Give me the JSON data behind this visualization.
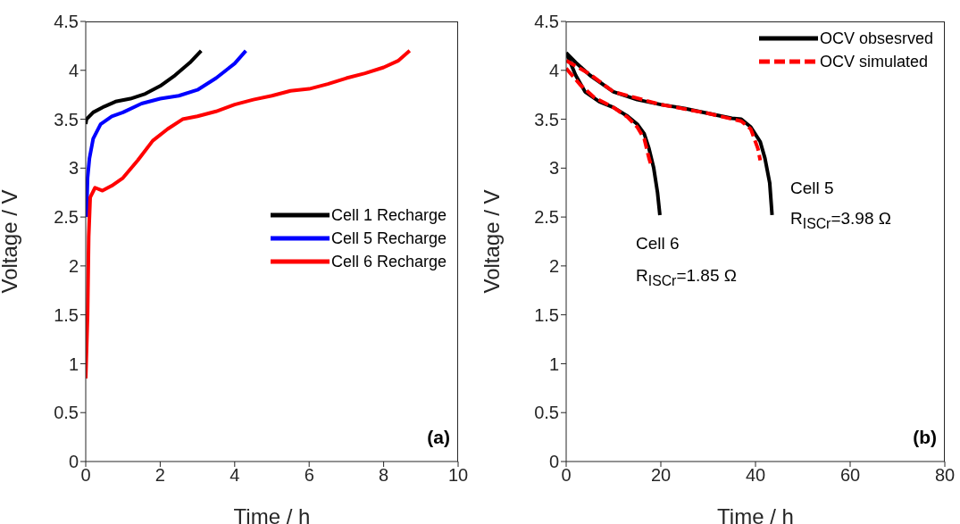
{
  "chart_data": [
    {
      "type": "line",
      "xlabel": "Time / h",
      "ylabel": "Voltage / V",
      "xlim": [
        0,
        10
      ],
      "ylim": [
        0,
        4.5
      ],
      "xticks": [
        0,
        2,
        4,
        6,
        8,
        10
      ],
      "yticks": [
        0,
        0.5,
        1,
        1.5,
        2,
        2.5,
        3,
        3.5,
        4,
        4.5
      ],
      "legend": "right",
      "annotations": [
        "(a)"
      ],
      "series": [
        {
          "name": "Cell 1 Recharge",
          "color": "#000000",
          "x": [
            0,
            0.02,
            0.2,
            0.5,
            0.8,
            1.2,
            1.6,
            2.0,
            2.4,
            2.8,
            3.1
          ],
          "values": [
            3.45,
            3.5,
            3.57,
            3.63,
            3.68,
            3.71,
            3.76,
            3.84,
            3.95,
            4.08,
            4.2
          ]
        },
        {
          "name": "Cell 5 Recharge",
          "color": "#0000ff",
          "x": [
            0.02,
            0.05,
            0.1,
            0.2,
            0.4,
            0.7,
            1.0,
            1.5,
            2.0,
            2.5,
            3.0,
            3.5,
            4.0,
            4.3
          ],
          "values": [
            2.5,
            2.9,
            3.1,
            3.3,
            3.45,
            3.53,
            3.57,
            3.66,
            3.71,
            3.74,
            3.8,
            3.92,
            4.07,
            4.2
          ]
        },
        {
          "name": "Cell 6 Recharge",
          "color": "#ff0000",
          "x": [
            0,
            0.05,
            0.08,
            0.12,
            0.25,
            0.45,
            0.7,
            1.0,
            1.4,
            1.8,
            2.2,
            2.6,
            3.0,
            3.5,
            4.0,
            4.5,
            5.0,
            5.5,
            6.0,
            6.5,
            7.0,
            7.5,
            8.0,
            8.4,
            8.7
          ],
          "values": [
            0.85,
            1.5,
            2.3,
            2.7,
            2.8,
            2.77,
            2.82,
            2.9,
            3.08,
            3.28,
            3.4,
            3.5,
            3.53,
            3.58,
            3.65,
            3.7,
            3.74,
            3.79,
            3.81,
            3.86,
            3.92,
            3.97,
            4.03,
            4.1,
            4.2
          ]
        }
      ]
    },
    {
      "type": "line",
      "xlabel": "Time / h",
      "ylabel": "Voltage / V",
      "xlim": [
        0,
        80
      ],
      "ylim": [
        0,
        4.5
      ],
      "xticks": [
        0,
        20,
        40,
        60,
        80
      ],
      "yticks": [
        0,
        0.5,
        1,
        1.5,
        2,
        2.5,
        3,
        3.5,
        4,
        4.5
      ],
      "legend": "top right",
      "annotations": [
        "(b)",
        "Cell 5",
        "R$_{ISCr}$=3.98 Ω",
        "Cell 6",
        "R$_{ISCr}$=1.85 Ω"
      ],
      "series": [
        {
          "name": "OCV obsesrved",
          "color": "#000000",
          "x": [
            0,
            2,
            5,
            10,
            15,
            20,
            25,
            30,
            35,
            37,
            39,
            41,
            42,
            43,
            43.5
          ],
          "values": [
            4.18,
            4.08,
            3.95,
            3.78,
            3.7,
            3.65,
            3.61,
            3.56,
            3.51,
            3.5,
            3.42,
            3.27,
            3.1,
            2.85,
            2.52
          ]
        },
        {
          "color": "#000000",
          "x": [
            0,
            2,
            4,
            7,
            10,
            13,
            15,
            16.5,
            17.5,
            18.5,
            19.3,
            19.8
          ],
          "values": [
            4.18,
            3.95,
            3.78,
            3.68,
            3.62,
            3.53,
            3.45,
            3.35,
            3.2,
            3.0,
            2.75,
            2.52
          ]
        },
        {
          "name": "OCV simulated",
          "color": "#ff0000",
          "line_style": "dashed",
          "x": [
            0,
            5,
            10,
            20,
            30,
            37,
            39,
            40.5,
            41
          ],
          "values": [
            4.1,
            3.96,
            3.78,
            3.65,
            3.56,
            3.48,
            3.4,
            3.2,
            3.08
          ]
        },
        {
          "color": "#ff0000",
          "line_style": "dashed",
          "x": [
            0,
            3,
            6,
            10,
            13,
            15,
            16.5,
            17.5,
            18
          ],
          "values": [
            4.02,
            3.85,
            3.72,
            3.62,
            3.52,
            3.42,
            3.3,
            3.1,
            3.02
          ]
        }
      ]
    }
  ]
}
